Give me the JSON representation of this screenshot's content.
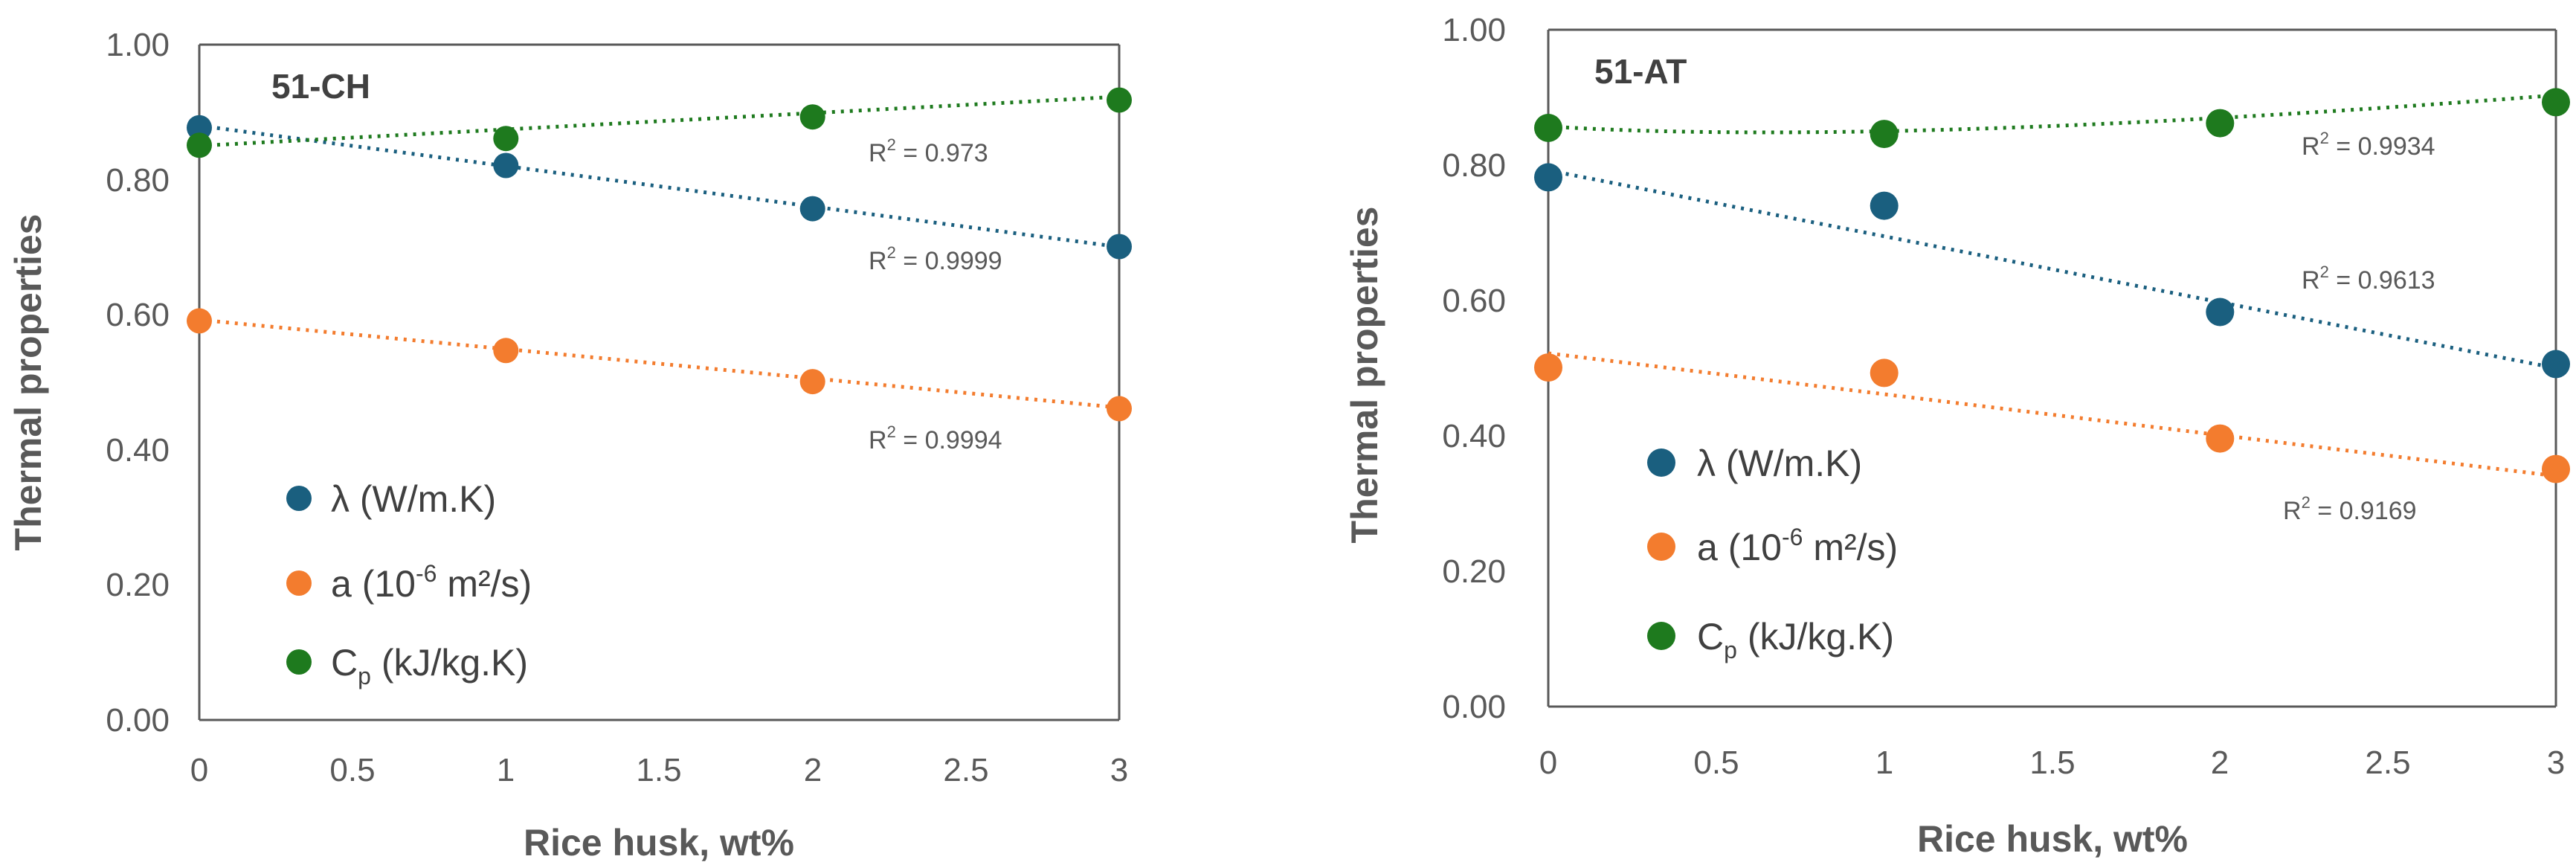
{
  "chart_data": [
    {
      "type": "scatter",
      "title": "51-CH",
      "xlabel": "Rice husk, wt%",
      "ylabel": "Thermal properties",
      "xlim": [
        0,
        3
      ],
      "ylim": [
        0,
        1
      ],
      "xticks": [
        "0",
        "0.5",
        "1",
        "1.5",
        "2",
        "2.5",
        "3"
      ],
      "yticks": [
        "0.00",
        "0.20",
        "0.40",
        "0.60",
        "0.80",
        "1.00"
      ],
      "legend_position": "bottom-left",
      "series": [
        {
          "key": "lambda",
          "name": "λ (W/m.K)",
          "color": "#1a5f7f",
          "x": [
            0,
            1,
            2,
            3
          ],
          "y": [
            0.877,
            0.821,
            0.757,
            0.701
          ],
          "r2_label": "R",
          "r2_value": "= 0.9999",
          "trendline": "linear"
        },
        {
          "key": "a",
          "name": "a (10-6 m²/s)",
          "color": "#f37c2e",
          "x": [
            0,
            1,
            2,
            3
          ],
          "y": [
            0.591,
            0.547,
            0.501,
            0.461
          ],
          "r2_label": "R",
          "r2_value": "= 0.9994",
          "trendline": "linear"
        },
        {
          "key": "cp",
          "name": "Cp (kJ/kg.K)",
          "color": "#1e7a1e",
          "x": [
            0,
            1,
            2,
            3
          ],
          "y": [
            0.851,
            0.861,
            0.893,
            0.918
          ],
          "r2_label": "R",
          "r2_value": "= 0.973",
          "trendline": "linear"
        }
      ]
    },
    {
      "type": "scatter",
      "title": "51-AT",
      "xlabel": "Rice husk, wt%",
      "ylabel": "Thermal properties",
      "xlim": [
        0,
        3
      ],
      "ylim": [
        0,
        1
      ],
      "xticks": [
        "0",
        "0.5",
        "1",
        "1.5",
        "2",
        "2.5",
        "3"
      ],
      "yticks": [
        "0.00",
        "0.20",
        "0.40",
        "0.60",
        "0.80",
        "1.00"
      ],
      "legend_position": "bottom-left",
      "series": [
        {
          "key": "lambda",
          "name": "λ (W/m.K)",
          "color": "#1a5f7f",
          "x": [
            0,
            1,
            2,
            3
          ],
          "y": [
            0.782,
            0.74,
            0.583,
            0.506
          ],
          "r2_label": "R",
          "r2_value": "= 0.9613",
          "trendline": "linear"
        },
        {
          "key": "a",
          "name": "a (10-6 m²/s)",
          "color": "#f37c2e",
          "x": [
            0,
            1,
            2,
            3
          ],
          "y": [
            0.501,
            0.493,
            0.396,
            0.351
          ],
          "r2_label": "R",
          "r2_value": "= 0.9169",
          "trendline": "linear"
        },
        {
          "key": "cp",
          "name": "Cp (kJ/kg.K)",
          "color": "#1e7a1e",
          "x": [
            0,
            1,
            2,
            3
          ],
          "y": [
            0.855,
            0.846,
            0.862,
            0.893
          ],
          "r2_label": "R",
          "r2_value": "= 0.9934",
          "trendline": "poly2"
        }
      ]
    }
  ],
  "legend": {
    "lambda": {
      "symbol": "λ",
      "text": "(W/m.K)"
    },
    "a": {
      "symbol": "a",
      "pre": "(10",
      "sup": "-6",
      "post": "m²/s)"
    },
    "cp": {
      "symbol": "C",
      "sub": "p",
      "text": "(kJ/kg.K)"
    },
    "r2_sup": "2"
  }
}
